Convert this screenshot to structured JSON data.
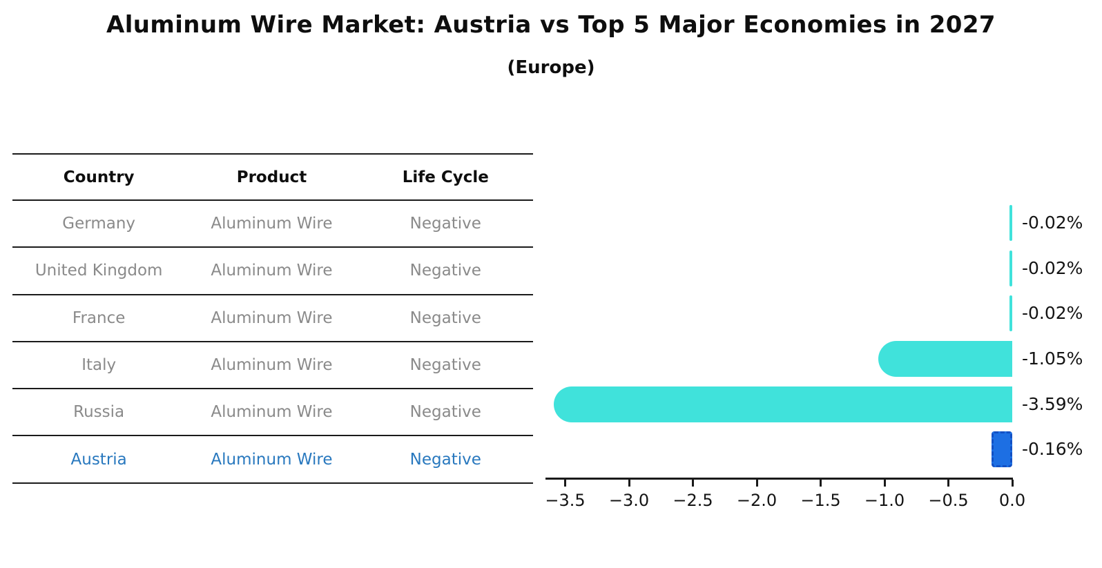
{
  "title": "Aluminum Wire Market: Austria vs Top 5 Major Economies in 2027",
  "subtitle": "(Europe)",
  "table": {
    "headers": [
      "Country",
      "Product",
      "Life Cycle"
    ],
    "rows": [
      {
        "country": "Germany",
        "product": "Aluminum Wire",
        "life_cycle": "Negative"
      },
      {
        "country": "United Kingdom",
        "product": "Aluminum Wire",
        "life_cycle": "Negative"
      },
      {
        "country": "France",
        "product": "Aluminum Wire",
        "life_cycle": "Negative"
      },
      {
        "country": "Italy",
        "product": "Aluminum Wire",
        "life_cycle": "Negative"
      },
      {
        "country": "Russia",
        "product": "Aluminum Wire",
        "life_cycle": "Negative"
      },
      {
        "country": "Austria",
        "product": "Aluminum Wire",
        "life_cycle": "Negative"
      }
    ],
    "highlight_row": "Austria"
  },
  "chart_data": {
    "type": "bar",
    "orientation": "horizontal",
    "categories": [
      "Germany",
      "United Kingdom",
      "France",
      "Italy",
      "Russia",
      "Austria"
    ],
    "values": [
      -0.02,
      -0.02,
      -0.02,
      -1.05,
      -3.59,
      -0.16
    ],
    "value_labels": [
      "-0.02%",
      "-0.02%",
      "-0.02%",
      "-1.05%",
      "-3.59%",
      "-0.16%"
    ],
    "unit": "percent",
    "xlim": [
      -3.65,
      0.0
    ],
    "xtick_values": [
      -3.5,
      -3.0,
      -2.5,
      -2.0,
      -1.5,
      -1.0,
      -0.5,
      0.0
    ],
    "xtick_labels": [
      "−3.5",
      "−3.0",
      "−2.5",
      "−2.0",
      "−1.5",
      "−1.0",
      "−0.5",
      "0.0"
    ],
    "grid": false,
    "legend": false,
    "highlight_index": 5,
    "title": "Aluminum Wire Market: Austria vs Top 5 Major Economies in 2027",
    "subtitle": "(Europe)"
  },
  "colors": {
    "bar": "#40e2db",
    "highlight_bar": "#1d6fe3",
    "highlight_bar_border": "#1250c4",
    "highlight_text": "#2878be",
    "table_text": "#8a8a8a",
    "heading_text": "#0e0e0e",
    "axis": "#1a1a1a"
  }
}
